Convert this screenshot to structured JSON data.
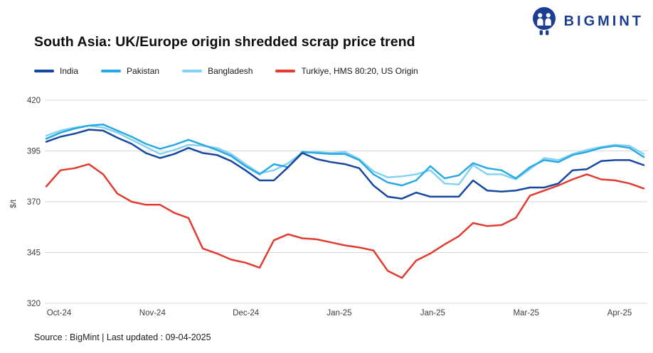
{
  "logo": {
    "text": "BIGMINT",
    "color": "#1b3e93"
  },
  "title": "South Asia: UK/Europe origin shredded scrap price trend",
  "footer": "Source : BigMint | Last updated : 09-04-2025",
  "chart_data": {
    "type": "line",
    "title": "South Asia: UK/Europe origin shredded scrap price trend",
    "xlabel": "",
    "ylabel": "$/t",
    "ylim": [
      320,
      420
    ],
    "yticks": [
      320,
      345,
      370,
      395,
      420
    ],
    "xticklabels": [
      "Oct-24",
      "Nov-24",
      "Dec-24",
      "Jan-25",
      "Jan-25",
      "Mar-25",
      "Apr-25"
    ],
    "grid": "horizontal-only",
    "gridline_color": "#d9d9d9",
    "axis_text_color": "#3d3d3d",
    "legend_position": "top-left",
    "series": [
      {
        "name": "India",
        "color": "#17479e",
        "values": [
          399.5,
          402,
          403.5,
          405.5,
          405,
          401.5,
          398.5,
          394,
          391.5,
          393.5,
          396.5,
          394,
          393,
          390,
          385.5,
          380.5,
          380.5,
          387,
          394,
          391,
          389.5,
          388.5,
          386.5,
          378,
          372.5,
          371.5,
          374.5,
          372.5,
          372.5,
          372.5,
          380.5,
          375.5,
          375,
          375.5,
          377,
          377,
          379,
          385.5,
          386,
          390,
          390.5,
          390.5,
          388
        ]
      },
      {
        "name": "Pakistan",
        "color": "#29a9e1",
        "values": [
          401,
          404,
          406,
          407.5,
          408,
          405,
          402,
          398.5,
          396,
          398,
          400.5,
          398,
          395.5,
          392.5,
          387.5,
          383.5,
          388.5,
          387,
          394.5,
          394,
          393.5,
          393.5,
          390.5,
          383.5,
          379.5,
          378,
          380.5,
          387.5,
          381.5,
          383,
          389,
          386.5,
          385.5,
          381.5,
          387,
          390.5,
          389.5,
          393,
          394.5,
          396.5,
          397.5,
          396.5,
          392
        ]
      },
      {
        "name": "Bangladesh",
        "color": "#85d2f2",
        "values": [
          402.5,
          405,
          406.5,
          407.5,
          406.5,
          404,
          400.5,
          397,
          393.5,
          395.5,
          398,
          397.5,
          396.5,
          393.5,
          388.5,
          384,
          385.5,
          389,
          394,
          394.5,
          394,
          394.5,
          391,
          385,
          382,
          382.5,
          383.5,
          385.5,
          379,
          378.5,
          388,
          383.5,
          383.5,
          381,
          386,
          391.5,
          390.5,
          393.5,
          395.5,
          397,
          398,
          397.5,
          393.5
        ]
      },
      {
        "name": "Turkiye, HMS 80:20, US Origin",
        "color": "#e13c32",
        "values": [
          377.5,
          385.5,
          386.5,
          388.5,
          383.5,
          374,
          370,
          368.5,
          368.5,
          364.5,
          362,
          347,
          344.5,
          341.5,
          340,
          337.5,
          351,
          354,
          352,
          351.5,
          350,
          348.5,
          347.5,
          346,
          336,
          332.5,
          341,
          344.5,
          349,
          353,
          359.5,
          358,
          358.5,
          362,
          373,
          375.5,
          378,
          381,
          383.5,
          381,
          380.5,
          379,
          376.5
        ]
      }
    ]
  }
}
